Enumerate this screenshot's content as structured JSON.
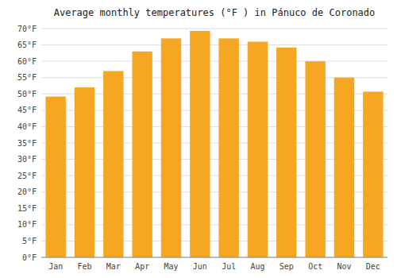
{
  "chart_data": {
    "type": "bar",
    "title": "Average monthly temperatures (°F ) in Pánuco de Coronado",
    "categories": [
      "Jan",
      "Feb",
      "Mar",
      "Apr",
      "May",
      "Jun",
      "Jul",
      "Aug",
      "Sep",
      "Oct",
      "Nov",
      "Dec"
    ],
    "values": [
      49.2,
      52.0,
      57.0,
      63.0,
      67.0,
      69.3,
      67.0,
      66.0,
      64.2,
      60.0,
      55.0,
      50.7
    ],
    "color": "#F5A623",
    "ylim": [
      0,
      70
    ],
    "yticks": [
      {
        "value": 0,
        "label": "0°F"
      },
      {
        "value": 5,
        "label": "5°F"
      },
      {
        "value": 10,
        "label": "10°F"
      },
      {
        "value": 15,
        "label": "15°F"
      },
      {
        "value": 20,
        "label": "20°F"
      },
      {
        "value": 25,
        "label": "25°F"
      },
      {
        "value": 30,
        "label": "30°F"
      },
      {
        "value": 35,
        "label": "35°F"
      },
      {
        "value": 40,
        "label": "40°F"
      },
      {
        "value": 45,
        "label": "45°F"
      },
      {
        "value": 50,
        "label": "50°F"
      },
      {
        "value": 55,
        "label": "55°F"
      },
      {
        "value": 60,
        "label": "60°F"
      },
      {
        "value": 65,
        "label": "65°F"
      },
      {
        "value": 70,
        "label": "70°F"
      }
    ],
    "grid": true
  }
}
